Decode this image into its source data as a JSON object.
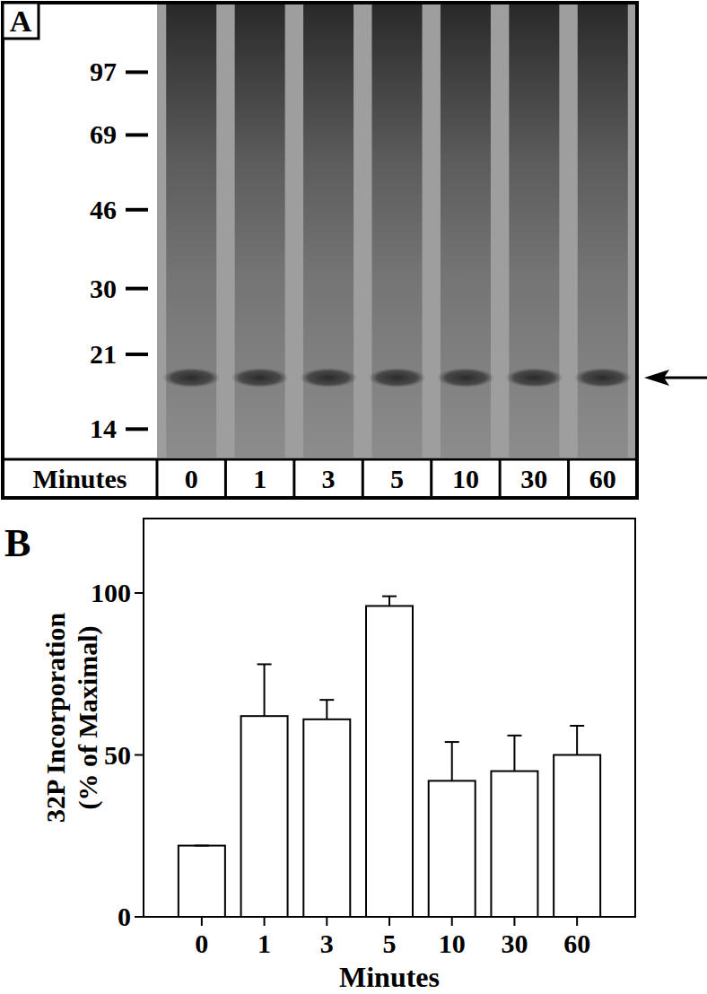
{
  "chart_data": [
    {
      "type": "gel",
      "panel": "A",
      "xlabel": "Minutes",
      "categories": [
        "0",
        "1",
        "3",
        "5",
        "10",
        "30",
        "60"
      ],
      "log": "y",
      "ylim": [
        12,
        140
      ],
      "yticks": [
        97,
        69,
        46,
        30,
        21,
        14
      ],
      "band_kda": 18.5
    },
    {
      "type": "bar",
      "panel": "B",
      "xlabel": "Minutes",
      "ylabel": [
        "32P Incorporation",
        "(% of Maximal)"
      ],
      "categories": [
        "0",
        "1",
        "3",
        "5",
        "10",
        "30",
        "60"
      ],
      "values": [
        22,
        62,
        61,
        96,
        42,
        45,
        50
      ],
      "errors": [
        0,
        16,
        6,
        3,
        12,
        11,
        9
      ],
      "ylim": [
        0,
        123
      ],
      "yticks": [
        0,
        50,
        100
      ],
      "color": "#ffffff"
    }
  ]
}
